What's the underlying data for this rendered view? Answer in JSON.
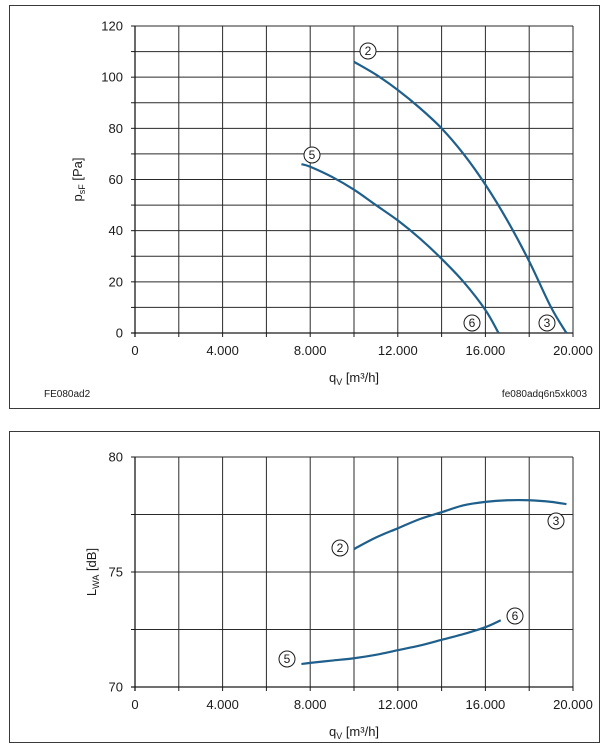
{
  "chart_data": [
    {
      "type": "line",
      "xlabel_main": "q",
      "xlabel_sub": "V",
      "xlabel_unit": " [m³/h]",
      "ylabel_main": "p",
      "ylabel_sub": "sF",
      "ylabel_unit": " [Pa]",
      "xlim": [
        0,
        20000
      ],
      "ylim": [
        0,
        120
      ],
      "x_ticks": [
        0,
        4000,
        8000,
        12000,
        16000,
        20000
      ],
      "x_tick_labels": [
        "0",
        "4.000",
        "8.000",
        "12.000",
        "16.000",
        "20.000"
      ],
      "y_ticks": [
        0,
        20,
        40,
        60,
        80,
        100,
        120
      ],
      "y_tick_labels": [
        "0",
        "20",
        "40",
        "60",
        "80",
        "100",
        "120"
      ],
      "grid": true,
      "footer_left": "FE080ad2",
      "footer_right": "fe080adq6n5xk003",
      "series": [
        {
          "points": [
            [
              10000,
              106
            ],
            [
              11000,
              101
            ],
            [
              12000,
              95
            ],
            [
              13000,
              88
            ],
            [
              14000,
              80
            ],
            [
              15000,
              70
            ],
            [
              16000,
              58
            ],
            [
              17000,
              44
            ],
            [
              18000,
              28
            ],
            [
              19000,
              10
            ],
            [
              19700,
              0
            ]
          ],
          "marker_start": "2",
          "marker_end": "3"
        },
        {
          "points": [
            [
              7600,
              66
            ],
            [
              8000,
              65
            ],
            [
              9000,
              61
            ],
            [
              10000,
              56
            ],
            [
              11000,
              50
            ],
            [
              12000,
              44
            ],
            [
              13000,
              37
            ],
            [
              14000,
              29
            ],
            [
              15000,
              20
            ],
            [
              16000,
              9
            ],
            [
              16600,
              0
            ]
          ],
          "marker_start": "5",
          "marker_end": "6"
        }
      ],
      "line_color": "#1f5f8b"
    },
    {
      "type": "line",
      "xlabel_main": "q",
      "xlabel_sub": "V",
      "xlabel_unit": " [m³/h]",
      "ylabel_main": "L",
      "ylabel_sub": "WA",
      "ylabel_unit": " [dB]",
      "xlim": [
        0,
        20000
      ],
      "ylim": [
        70,
        80
      ],
      "x_ticks": [
        0,
        4000,
        8000,
        12000,
        16000,
        20000
      ],
      "x_tick_labels": [
        "0",
        "4.000",
        "8.000",
        "12.000",
        "16.000",
        "20.000"
      ],
      "y_ticks": [
        70,
        75,
        80
      ],
      "y_tick_labels": [
        "70",
        "75",
        "80"
      ],
      "grid": true,
      "series": [
        {
          "points": [
            [
              10000,
              76.0
            ],
            [
              11000,
              76.5
            ],
            [
              12000,
              76.9
            ],
            [
              13000,
              77.3
            ],
            [
              14000,
              77.6
            ],
            [
              15000,
              77.9
            ],
            [
              16000,
              78.05
            ],
            [
              17000,
              78.12
            ],
            [
              18000,
              78.12
            ],
            [
              19000,
              78.05
            ],
            [
              19700,
              77.95
            ]
          ],
          "marker_start": "2",
          "marker_end": "3"
        },
        {
          "points": [
            [
              7600,
              71.0
            ],
            [
              8000,
              71.05
            ],
            [
              9000,
              71.15
            ],
            [
              10000,
              71.25
            ],
            [
              11000,
              71.4
            ],
            [
              12000,
              71.6
            ],
            [
              13000,
              71.8
            ],
            [
              14000,
              72.05
            ],
            [
              15000,
              72.3
            ],
            [
              16000,
              72.6
            ],
            [
              16700,
              72.9
            ]
          ],
          "marker_start": "5",
          "marker_end": "6"
        }
      ],
      "line_color": "#1f5f8b"
    }
  ]
}
